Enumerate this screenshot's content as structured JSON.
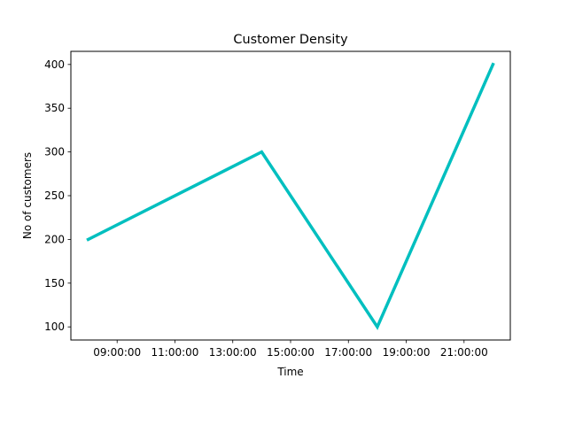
{
  "chart_data": {
    "type": "line",
    "title": "Customer Density",
    "xlabel": "Time",
    "ylabel": "No of customers",
    "x": [
      "08:00:00",
      "14:00:00",
      "18:00:00",
      "22:00:00"
    ],
    "series": [
      {
        "values": [
          200,
          300,
          100,
          400
        ],
        "color": "#00bfbf"
      }
    ],
    "xticks": [
      "09:00:00",
      "11:00:00",
      "13:00:00",
      "15:00:00",
      "17:00:00",
      "19:00:00",
      "21:00:00"
    ],
    "yticks": [
      100,
      150,
      200,
      250,
      300,
      350,
      400
    ],
    "xlim": [
      "07:24:00",
      "22:36:00"
    ],
    "ylim": [
      85,
      415
    ],
    "grid": false,
    "legend": "none"
  }
}
